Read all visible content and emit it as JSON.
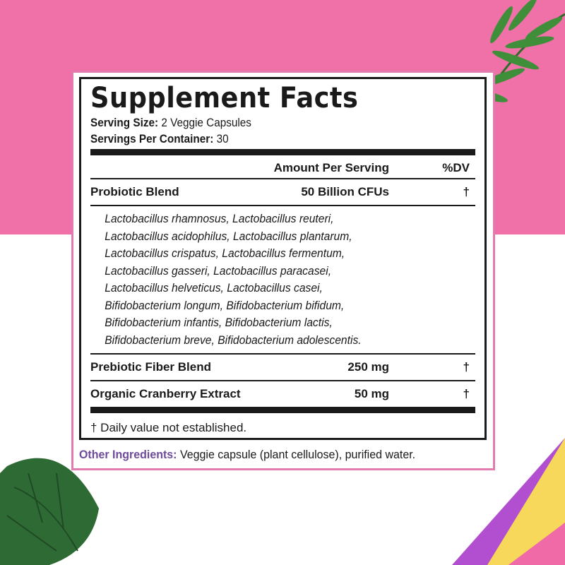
{
  "title": "Supplement Facts",
  "serving_size": {
    "label": "Serving Size:",
    "value": "2 Veggie Capsules"
  },
  "servings_per_container": {
    "label": "Servings Per Container:",
    "value": "30"
  },
  "header": {
    "amount": "Amount Per Serving",
    "dv": "%DV"
  },
  "rows": [
    {
      "name": "Probiotic Blend",
      "amount": "50 Billion CFUs",
      "dv": "†"
    },
    {
      "name": "Prebiotic Fiber Blend",
      "amount": "250 mg",
      "dv": "†"
    },
    {
      "name": "Organic Cranberry Extract",
      "amount": "50 mg",
      "dv": "†"
    }
  ],
  "strains": [
    "Lactobacillus rhamnosus, Lactobacillus reuteri,",
    "Lactobacillus acidophilus, Lactobacillus plantarum,",
    "Lactobacillus crispatus, Lactobacillus fermentum,",
    "Lactobacillus gasseri, Lactobacillus paracasei,",
    "Lactobacillus helveticus, Lactobacillus casei,",
    "Bifidobacterium longum, Bifidobacterium bifidum,",
    "Bifidobacterium infantis, Bifidobacterium lactis,",
    "Bifidobacterium breve, Bifidobacterium adolescentis."
  ],
  "footnote": "† Daily value not established.",
  "other_ingredients": {
    "label": "Other Ingredients:",
    "value": "Veggie capsule (plant cellulose), purified water."
  },
  "colors": {
    "pink_band": "#f071a8",
    "card_border": "#e27bb0",
    "other_label": "#6e4a9b"
  }
}
